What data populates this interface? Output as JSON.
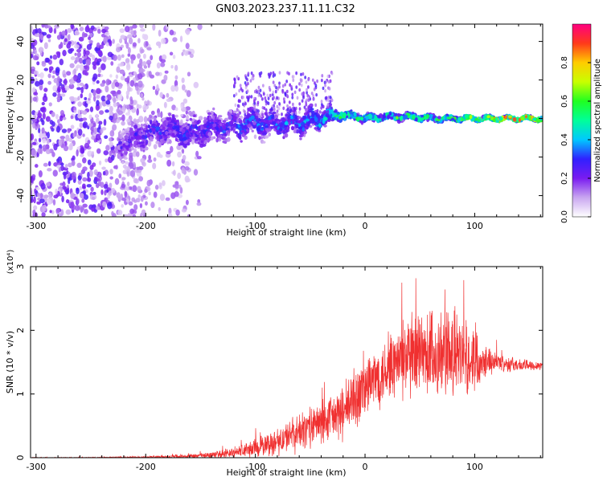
{
  "title": "GN03.2023.237.11.11.C32",
  "chart_data": [
    {
      "type": "heatmap",
      "xlabel": "Height of straight line (km)",
      "ylabel": "Frequency (Hz)",
      "xlim": [
        -305,
        162
      ],
      "ylim": [
        -51,
        49
      ],
      "x_ticks": [
        -300,
        -200,
        -100,
        0,
        100
      ],
      "y_ticks": [
        -40,
        -20,
        0,
        20,
        40
      ],
      "x_tick_labels": [
        "-300",
        "-200",
        "-100",
        "0",
        "100"
      ],
      "y_tick_labels": [
        "-40",
        "-20",
        "0",
        "20",
        "40"
      ],
      "colorbar": {
        "label": "Normalized spectral amplitude",
        "range": [
          0,
          1
        ],
        "ticks": [
          0.0,
          0.2,
          0.4,
          0.6,
          0.8
        ],
        "tick_labels": [
          "0.0",
          "0.2",
          "0.4",
          "0.6",
          "0.8"
        ],
        "colormap": [
          "#ffffff",
          "#c9a6f0",
          "#7a1cf0",
          "#3020ff",
          "#00c8ff",
          "#00ff9a",
          "#20ff20",
          "#c8ff00",
          "#ffcc00",
          "#ff3a1a",
          "#ff0080"
        ]
      },
      "ridge": {
        "x": [
          -220,
          -200,
          -180,
          -160,
          -140,
          -120,
          -100,
          -80,
          -60,
          -40,
          -20,
          0,
          20,
          40,
          60,
          80,
          100,
          120,
          140,
          160
        ],
        "center_hz": [
          -13,
          -8,
          -5,
          -8,
          -5,
          -4,
          -2,
          -3,
          -2,
          0,
          2,
          0,
          1,
          1,
          0,
          0,
          0,
          0,
          0,
          0
        ],
        "spread_hz": [
          10,
          11,
          10,
          12,
          11,
          9,
          9,
          8,
          8,
          6,
          3,
          2,
          2,
          2,
          2,
          1.5,
          1.2,
          1,
          1,
          1
        ],
        "peak_amplitude": [
          0.25,
          0.3,
          0.3,
          0.3,
          0.3,
          0.35,
          0.35,
          0.35,
          0.4,
          0.45,
          0.65,
          0.6,
          0.6,
          0.6,
          0.6,
          0.7,
          0.85,
          0.9,
          0.9,
          0.9
        ]
      }
    },
    {
      "type": "line",
      "xlabel": "Height of straight line (km)",
      "ylabel": "SNR (10 * v/v)",
      "y_multiplier": "(x10⁴)",
      "xlim": [
        -305,
        162
      ],
      "ylim": [
        0,
        3
      ],
      "x_ticks": [
        -300,
        -200,
        -100,
        0,
        100
      ],
      "y_ticks": [
        0,
        1,
        2,
        3
      ],
      "x_tick_labels": [
        "-300",
        "-200",
        "-100",
        "0",
        "100"
      ],
      "y_tick_labels": [
        "0",
        "1",
        "2",
        "3"
      ],
      "color": "#f03030",
      "envelope": {
        "x": [
          -305,
          -250,
          -200,
          -160,
          -140,
          -120,
          -100,
          -80,
          -60,
          -40,
          -20,
          -10,
          0,
          20,
          30,
          40,
          50,
          60,
          80,
          100,
          110,
          120,
          140,
          162
        ],
        "mean": [
          0.0,
          0.0,
          0.01,
          0.02,
          0.04,
          0.08,
          0.15,
          0.25,
          0.4,
          0.55,
          0.7,
          0.9,
          1.1,
          1.4,
          1.5,
          1.55,
          1.55,
          1.6,
          1.6,
          1.55,
          1.55,
          1.5,
          1.45,
          1.45
        ],
        "amplitude": [
          0.01,
          0.01,
          0.02,
          0.04,
          0.06,
          0.1,
          0.18,
          0.25,
          0.35,
          0.4,
          0.5,
          0.6,
          0.6,
          0.6,
          0.7,
          0.8,
          0.9,
          0.9,
          0.8,
          0.6,
          0.3,
          0.18,
          0.12,
          0.08
        ]
      }
    }
  ]
}
